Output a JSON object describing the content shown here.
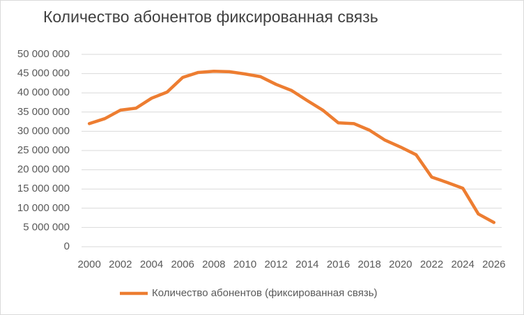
{
  "chart_data": {
    "type": "line",
    "title": "Количество абонентов фиксированная связь",
    "x": [
      2000,
      2001,
      2002,
      2003,
      2004,
      2005,
      2006,
      2007,
      2008,
      2009,
      2010,
      2011,
      2012,
      2013,
      2014,
      2015,
      2016,
      2017,
      2018,
      2019,
      2020,
      2021,
      2022,
      2023,
      2024,
      2025,
      2026
    ],
    "series": [
      {
        "name": "Количество абонентов (фиксированная связь)",
        "color": "#ed7d31",
        "values": [
          32000000,
          33300000,
          35500000,
          36000000,
          38600000,
          40200000,
          44000000,
          45300000,
          45600000,
          45500000,
          44900000,
          44200000,
          42200000,
          40600000,
          38000000,
          35500000,
          32200000,
          32000000,
          30300000,
          27700000,
          25900000,
          23900000,
          18100000,
          16700000,
          15200000,
          8500000,
          6300000
        ]
      }
    ],
    "xlim": [
      1999.5,
      2026.5
    ],
    "xticks": [
      2000,
      2002,
      2004,
      2006,
      2008,
      2010,
      2012,
      2014,
      2016,
      2018,
      2020,
      2022,
      2024,
      2026
    ],
    "ylim": [
      0,
      50000000
    ],
    "yticks": [
      0,
      {
        "value": 5000000,
        "label": "5 000 000"
      },
      {
        "value": 10000000,
        "label": "10 000 000"
      },
      {
        "value": 15000000,
        "label": "15 000 000"
      },
      {
        "value": 20000000,
        "label": "20 000 000"
      },
      {
        "value": 25000000,
        "label": "25 000 000"
      },
      {
        "value": 30000000,
        "label": "30 000 000"
      },
      {
        "value": 35000000,
        "label": "35 000 000"
      },
      {
        "value": 40000000,
        "label": "40 000 000"
      },
      {
        "value": 45000000,
        "label": "45 000 000"
      },
      {
        "value": 50000000,
        "label": "50 000 000"
      }
    ],
    "grid": true,
    "legend": "bottom"
  }
}
